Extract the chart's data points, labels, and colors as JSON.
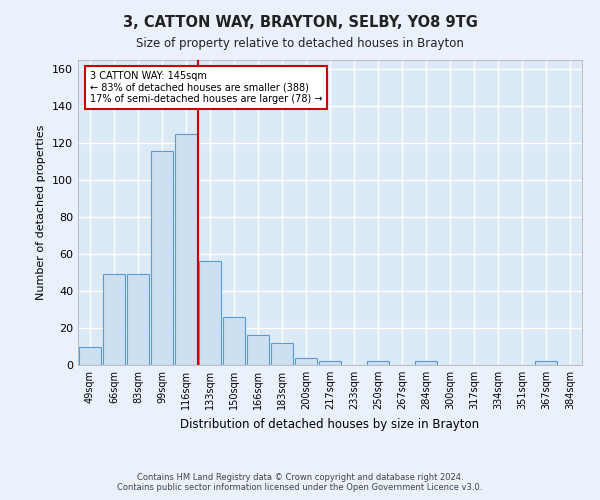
{
  "title": "3, CATTON WAY, BRAYTON, SELBY, YO8 9TG",
  "subtitle": "Size of property relative to detached houses in Brayton",
  "xlabel": "Distribution of detached houses by size in Brayton",
  "ylabel": "Number of detached properties",
  "bar_color": "#cde0f2",
  "bar_edge_color": "#5b9bd5",
  "background_color": "#dce9f7",
  "grid_color": "#ffffff",
  "fig_background_color": "#eaf1fa",
  "categories": [
    "49sqm",
    "66sqm",
    "83sqm",
    "99sqm",
    "116sqm",
    "133sqm",
    "150sqm",
    "166sqm",
    "183sqm",
    "200sqm",
    "217sqm",
    "233sqm",
    "250sqm",
    "267sqm",
    "284sqm",
    "300sqm",
    "317sqm",
    "334sqm",
    "351sqm",
    "367sqm",
    "384sqm"
  ],
  "values": [
    10,
    49,
    49,
    116,
    125,
    56,
    26,
    16,
    12,
    4,
    2,
    0,
    2,
    0,
    2,
    0,
    0,
    0,
    0,
    2,
    0
  ],
  "ylim": [
    0,
    165
  ],
  "yticks": [
    0,
    20,
    40,
    60,
    80,
    100,
    120,
    140,
    160
  ],
  "property_line_x": 4.5,
  "property_line_color": "#cc0000",
  "annotation_text": "3 CATTON WAY: 145sqm\n← 83% of detached houses are smaller (388)\n17% of semi-detached houses are larger (78) →",
  "annotation_box_color": "#ffffff",
  "annotation_box_edge_color": "#cc0000",
  "footer_line1": "Contains HM Land Registry data © Crown copyright and database right 2024.",
  "footer_line2": "Contains public sector information licensed under the Open Government Licence v3.0."
}
